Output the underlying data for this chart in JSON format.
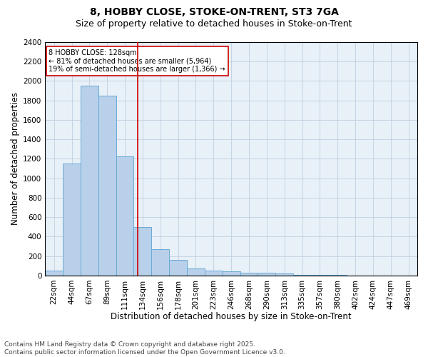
{
  "title1": "8, HOBBY CLOSE, STOKE-ON-TRENT, ST3 7GA",
  "title2": "Size of property relative to detached houses in Stoke-on-Trent",
  "xlabel": "Distribution of detached houses by size in Stoke-on-Trent",
  "ylabel": "Number of detached properties",
  "categories": [
    "22sqm",
    "44sqm",
    "67sqm",
    "89sqm",
    "111sqm",
    "134sqm",
    "156sqm",
    "178sqm",
    "201sqm",
    "223sqm",
    "246sqm",
    "268sqm",
    "290sqm",
    "313sqm",
    "335sqm",
    "357sqm",
    "380sqm",
    "402sqm",
    "424sqm",
    "447sqm",
    "469sqm"
  ],
  "values": [
    50,
    1150,
    1950,
    1850,
    1225,
    500,
    270,
    160,
    75,
    50,
    45,
    28,
    28,
    18,
    8,
    4,
    4,
    2,
    2,
    1,
    1
  ],
  "bar_color": "#b8d0ea",
  "bar_edge_color": "#6aaad4",
  "bar_linewidth": 0.7,
  "grid_color": "#c0d0e0",
  "background_color": "#e8f0f8",
  "annotation_text": "8 HOBBY CLOSE: 128sqm\n← 81% of detached houses are smaller (5,964)\n19% of semi-detached houses are larger (1,366) →",
  "vline_color": "#cc0000",
  "annotation_box_edgecolor": "#cc0000",
  "ylim": [
    0,
    2400
  ],
  "yticks": [
    0,
    200,
    400,
    600,
    800,
    1000,
    1200,
    1400,
    1600,
    1800,
    2000,
    2200,
    2400
  ],
  "footer1": "Contains HM Land Registry data © Crown copyright and database right 2025.",
  "footer2": "Contains public sector information licensed under the Open Government Licence v3.0.",
  "title1_fontsize": 10,
  "title2_fontsize": 9,
  "xlabel_fontsize": 8.5,
  "ylabel_fontsize": 8.5,
  "tick_fontsize": 7.5,
  "annotation_fontsize": 7,
  "footer_fontsize": 6.5
}
